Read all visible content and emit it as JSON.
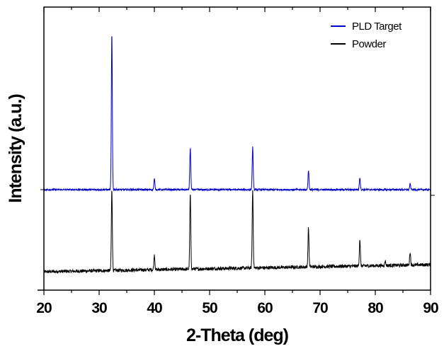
{
  "chart_data": {
    "type": "line",
    "xlabel": "2-Theta (deg)",
    "ylabel": "Intensity (a.u.)",
    "xlim": [
      20,
      90
    ],
    "ylim": [
      0,
      100
    ],
    "xticks": [
      20,
      30,
      40,
      50,
      60,
      70,
      80,
      90
    ],
    "xtick_labels": [
      "20",
      "30",
      "40",
      "50",
      "60",
      "70",
      "80",
      "90"
    ],
    "y_tick_labels_shown": false,
    "grid": false,
    "legend_position": "top-right",
    "series": [
      {
        "name": "PLD Target",
        "color": "#0000cc",
        "baseline": [
          [
            20,
            35.5
          ],
          [
            90,
            35.5
          ]
        ],
        "noise": 0.3,
        "peaks": [
          [
            32.3,
            90.8
          ],
          [
            40.0,
            39.3
          ],
          [
            46.5,
            50.3
          ],
          [
            57.8,
            50.5
          ],
          [
            67.9,
            42.3
          ],
          [
            77.2,
            39.8
          ],
          [
            86.3,
            37.5
          ]
        ]
      },
      {
        "name": "Powder",
        "color": "#000000",
        "baseline": [
          [
            20,
            6.5
          ],
          [
            90,
            9.0
          ]
        ],
        "noise": 0.6,
        "peaks": [
          [
            32.3,
            35.5
          ],
          [
            40.0,
            12.5
          ],
          [
            46.5,
            34.0
          ],
          [
            57.8,
            35.5
          ],
          [
            67.9,
            22.0
          ],
          [
            77.2,
            18.0
          ],
          [
            81.8,
            10.3
          ],
          [
            86.3,
            13.5
          ]
        ]
      }
    ]
  }
}
